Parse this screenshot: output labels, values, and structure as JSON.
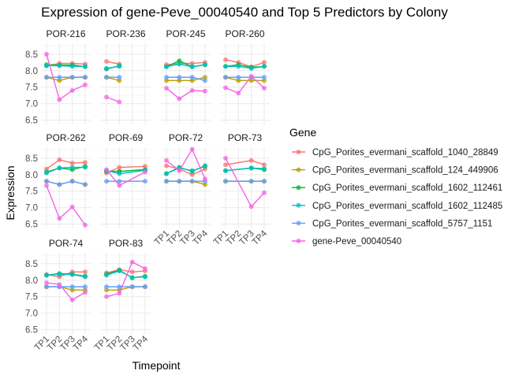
{
  "chart_data": {
    "type": "line",
    "title": "Expression of gene-Peve_00040540 and Top 5 Predictors by Colony",
    "xlabel": "Timepoint",
    "ylabel": "Expression",
    "categories": [
      "TP1",
      "TP2",
      "TP3",
      "TP4"
    ],
    "y_ticks": [
      6.5,
      7.0,
      7.5,
      8.0,
      8.5
    ],
    "y_tick_labels": [
      "6.5",
      "7.0",
      "7.5",
      "8.0",
      "8.5"
    ],
    "ylim": [
      6.37,
      8.83
    ],
    "grid": true,
    "legend": {
      "title": "Gene",
      "placement": "right"
    },
    "series": [
      {
        "name": "CpG_Porites_evermani_scaffold_1040_28849",
        "color": "#F8766D"
      },
      {
        "name": "CpG_Porites_evermani_scaffold_124_449906",
        "color": "#B79F00"
      },
      {
        "name": "CpG_Porites_evermani_scaffold_1602_112461",
        "color": "#00BA38"
      },
      {
        "name": "CpG_Porites_evermani_scaffold_1602_112485",
        "color": "#00BFC4"
      },
      {
        "name": "CpG_Porites_evermani_scaffold_5757_1151",
        "color": "#619CFF"
      },
      {
        "name": "gene-Peve_00040540",
        "color": "#F564E3"
      }
    ],
    "panels": [
      {
        "colony": "POR-216",
        "values": [
          [
            8.15,
            8.22,
            8.22,
            8.2
          ],
          [
            7.8,
            7.7,
            7.8,
            7.8
          ],
          [
            8.18,
            8.17,
            8.17,
            8.12
          ],
          [
            8.15,
            8.15,
            8.13,
            8.13
          ],
          [
            7.8,
            7.8,
            7.8,
            7.8
          ],
          [
            8.5,
            7.12,
            7.4,
            7.57
          ]
        ]
      },
      {
        "colony": "POR-236",
        "values": [
          [
            8.28,
            8.2,
            null,
            null
          ],
          [
            7.8,
            7.7,
            null,
            null
          ],
          [
            8.05,
            8.15,
            null,
            null
          ],
          [
            8.07,
            8.13,
            null,
            null
          ],
          [
            7.8,
            7.8,
            null,
            null
          ],
          [
            7.2,
            7.05,
            null,
            null
          ]
        ]
      },
      {
        "colony": "POR-245",
        "values": [
          [
            8.18,
            8.22,
            8.22,
            8.25
          ],
          [
            7.7,
            7.7,
            7.7,
            7.8
          ],
          [
            8.12,
            8.3,
            8.12,
            8.18
          ],
          [
            8.12,
            8.2,
            8.12,
            8.18
          ],
          [
            7.8,
            7.8,
            7.8,
            7.7
          ],
          [
            7.47,
            7.15,
            7.4,
            7.38
          ]
        ]
      },
      {
        "colony": "POR-260",
        "values": [
          [
            8.33,
            8.25,
            8.12,
            8.25
          ],
          [
            7.8,
            7.7,
            7.7,
            7.7
          ],
          [
            8.13,
            8.18,
            8.1,
            8.13
          ],
          [
            8.13,
            8.13,
            8.07,
            8.13
          ],
          [
            7.8,
            7.8,
            7.8,
            7.8
          ],
          [
            7.48,
            7.32,
            7.83,
            7.47
          ]
        ]
      },
      {
        "colony": "POR-262",
        "values": [
          [
            8.17,
            8.45,
            8.35,
            8.37
          ],
          [
            7.8,
            7.7,
            7.8,
            7.7
          ],
          [
            8.08,
            8.2,
            8.15,
            8.25
          ],
          [
            8.05,
            8.2,
            8.22,
            8.22
          ],
          [
            7.8,
            7.7,
            7.8,
            7.7
          ],
          [
            7.67,
            6.67,
            7.02,
            6.47
          ]
        ]
      },
      {
        "colony": "POR-69",
        "values": [
          [
            8.05,
            8.22,
            null,
            8.25
          ],
          [
            8.1,
            8.1,
            null,
            8.15
          ],
          [
            8.1,
            8.1,
            null,
            8.15
          ],
          [
            8.12,
            8.03,
            null,
            8.13
          ],
          [
            7.8,
            7.8,
            null,
            7.8
          ],
          [
            8.15,
            7.67,
            null,
            8.08
          ]
        ]
      },
      {
        "colony": "POR-72",
        "values": [
          [
            8.27,
            8.17,
            8.0,
            8.17
          ],
          [
            7.8,
            7.8,
            7.8,
            7.7
          ],
          [
            8.03,
            8.22,
            8.1,
            8.27
          ],
          [
            8.03,
            8.2,
            8.12,
            8.25
          ],
          [
            7.8,
            7.8,
            7.8,
            7.8
          ],
          [
            8.43,
            8.12,
            8.77,
            7.87
          ]
        ]
      },
      {
        "colony": "POR-73",
        "values": [
          [
            8.3,
            null,
            8.43,
            8.3
          ],
          [
            7.8,
            null,
            7.8,
            7.8
          ],
          [
            8.12,
            null,
            8.2,
            8.15
          ],
          [
            8.12,
            null,
            8.2,
            8.18
          ],
          [
            7.8,
            null,
            7.8,
            7.8
          ],
          [
            8.5,
            null,
            7.03,
            7.45
          ]
        ]
      },
      {
        "colony": "POR-74",
        "values": [
          [
            8.17,
            8.1,
            8.25,
            8.25
          ],
          [
            7.8,
            7.8,
            7.7,
            7.7
          ],
          [
            8.15,
            8.2,
            8.18,
            8.12
          ],
          [
            8.15,
            8.18,
            8.17,
            8.1
          ],
          [
            7.8,
            7.8,
            7.8,
            7.8
          ],
          [
            7.92,
            7.87,
            7.4,
            7.63
          ]
        ]
      },
      {
        "colony": "POR-83",
        "values": [
          [
            8.22,
            8.32,
            8.25,
            8.28
          ],
          [
            7.7,
            7.7,
            7.8,
            7.8
          ],
          [
            8.18,
            8.3,
            8.07,
            8.12
          ],
          [
            8.15,
            8.28,
            8.08,
            8.1
          ],
          [
            7.8,
            7.8,
            7.8,
            7.8
          ],
          [
            7.5,
            7.6,
            8.55,
            8.35
          ]
        ]
      }
    ]
  }
}
